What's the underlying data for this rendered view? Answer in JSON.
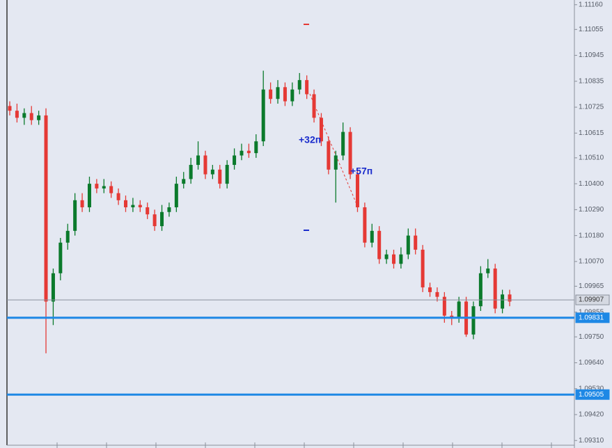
{
  "chart_data": {
    "type": "candlestick",
    "up_color": "#0b7a2c",
    "down_color": "#e53935",
    "open": [
      1.1073,
      1.1071,
      1.1068,
      1.107,
      1.1067,
      1.1069,
      1.099,
      1.1002,
      1.1015,
      1.102,
      1.1033,
      1.103,
      1.104,
      1.1038,
      1.1039,
      1.1036,
      1.1033,
      1.103,
      1.1031,
      1.103,
      1.1027,
      1.1022,
      1.1028,
      1.103,
      1.104,
      1.1042,
      1.1048,
      1.1052,
      1.1044,
      1.1046,
      1.104,
      1.1048,
      1.1052,
      1.1054,
      1.1053,
      1.1058,
      1.108,
      1.1076,
      1.1081,
      1.1075,
      1.108,
      1.1084,
      1.1078,
      1.1068,
      1.1058,
      1.1046,
      1.1052,
      1.1062,
      1.1044,
      1.103,
      1.1015,
      1.102,
      1.1008,
      1.101,
      1.1006,
      1.101,
      1.1018,
      1.1012,
      1.0996,
      1.0994,
      1.0992,
      1.0984,
      1.0983,
      1.099,
      1.0976,
      1.0988,
      1.1002,
      1.1004,
      1.0987,
      1.0993
    ],
    "high": [
      1.1075,
      1.1074,
      1.1072,
      1.1073,
      1.1071,
      1.1072,
      1.1004,
      1.1017,
      1.1023,
      1.1036,
      1.1036,
      1.1043,
      1.1042,
      1.1042,
      1.1041,
      1.1038,
      1.1035,
      1.1034,
      1.1033,
      1.1032,
      1.1029,
      1.1031,
      1.1032,
      1.1043,
      1.1045,
      1.1051,
      1.1058,
      1.1054,
      1.1048,
      1.1048,
      1.105,
      1.1055,
      1.1057,
      1.1057,
      1.1061,
      1.1088,
      1.1083,
      1.1084,
      1.1083,
      1.1083,
      1.1087,
      1.1086,
      1.108,
      1.107,
      1.106,
      1.1054,
      1.1066,
      1.1064,
      1.1046,
      1.1032,
      1.1023,
      1.1022,
      1.1012,
      1.1012,
      1.1013,
      1.1021,
      1.1021,
      1.1014,
      1.0998,
      1.0996,
      1.0994,
      1.0986,
      1.0992,
      1.0992,
      1.099,
      1.1005,
      1.1008,
      1.1006,
      1.0995,
      1.0995
    ],
    "low": [
      1.1069,
      1.1066,
      1.1065,
      1.1065,
      1.1065,
      1.0968,
      1.098,
      1.0999,
      1.1012,
      1.1018,
      1.1028,
      1.1028,
      1.1036,
      1.1036,
      1.1034,
      1.1031,
      1.1028,
      1.1028,
      1.1028,
      1.1025,
      1.102,
      1.102,
      1.1026,
      1.1028,
      1.1038,
      1.104,
      1.1046,
      1.1042,
      1.1042,
      1.1038,
      1.1038,
      1.1046,
      1.105,
      1.1051,
      1.1051,
      1.1056,
      1.1074,
      1.1074,
      1.1073,
      1.1073,
      1.1078,
      1.1076,
      1.1066,
      1.1056,
      1.1044,
      1.1032,
      1.105,
      1.1042,
      1.1028,
      1.1013,
      1.1013,
      1.1006,
      1.1006,
      1.1004,
      1.1004,
      1.1008,
      1.101,
      1.0994,
      1.0992,
      1.099,
      1.0981,
      1.098,
      1.0981,
      1.0975,
      1.0974,
      1.0986,
      1.1,
      1.0985,
      1.0985,
      1.0988
    ],
    "close": [
      1.1071,
      1.1068,
      1.107,
      1.1067,
      1.1069,
      1.099,
      1.1002,
      1.1015,
      1.102,
      1.1033,
      1.103,
      1.104,
      1.1038,
      1.1039,
      1.1036,
      1.1033,
      1.103,
      1.1031,
      1.103,
      1.1027,
      1.1022,
      1.1028,
      1.103,
      1.104,
      1.1042,
      1.1048,
      1.1052,
      1.1044,
      1.1046,
      1.104,
      1.1048,
      1.1052,
      1.1054,
      1.1053,
      1.1058,
      1.108,
      1.1076,
      1.1081,
      1.1075,
      1.108,
      1.1084,
      1.1078,
      1.1068,
      1.1058,
      1.1046,
      1.1052,
      1.1062,
      1.1044,
      1.103,
      1.1015,
      1.102,
      1.1008,
      1.101,
      1.1006,
      1.101,
      1.1018,
      1.1012,
      1.0996,
      1.0994,
      1.0992,
      1.0984,
      1.0983,
      1.099,
      1.0976,
      1.0988,
      1.1002,
      1.1004,
      1.0987,
      1.0993,
      1.099
    ],
    "ylim": [
      1.0929,
      1.1118
    ],
    "yticks": [
      {
        "value": 1.1116,
        "label": "1.11160"
      },
      1.11055,
      1.10945,
      1.10835,
      1.10725,
      1.10615,
      {
        "value": 1.1051,
        "label": "1.10510"
      },
      {
        "value": 1.104,
        "label": "1.10400"
      },
      {
        "value": 1.1029,
        "label": "1.10290"
      },
      {
        "value": 1.1018,
        "label": "1.10180"
      },
      {
        "value": 1.1007,
        "label": "1.10070"
      },
      1.09965,
      1.09855,
      {
        "value": 1.0975,
        "label": "1.09750"
      },
      {
        "value": 1.0964,
        "label": "1.09640"
      },
      {
        "value": 1.0953,
        "label": "1.09530"
      },
      {
        "value": 1.0942,
        "label": "1.09420"
      },
      {
        "value": 1.0931,
        "label": "1.09310"
      }
    ],
    "hlines": [
      {
        "value": 1.09907,
        "color": "#8a909c"
      },
      {
        "value": 1.09831,
        "color": "#1e88e5"
      },
      {
        "value": 1.09505,
        "color": "#1e88e5"
      }
    ],
    "annotations": [
      "+32п",
      "+57п"
    ]
  }
}
